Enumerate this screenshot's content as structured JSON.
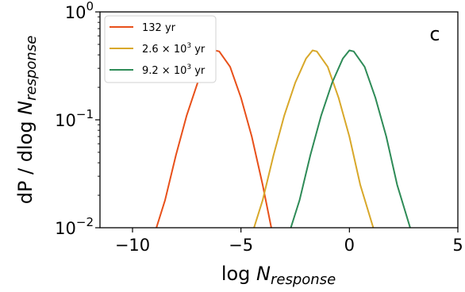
{
  "chart_data": {
    "type": "line",
    "title": "",
    "panel_label": "c",
    "xlabel_main": "log ",
    "xlabel_sym": "N",
    "xlabel_sub": "response",
    "ylabel_main": "dP / dlog ",
    "ylabel_sym": "N",
    "ylabel_sub": "response",
    "xlim": [
      -11.5,
      5
    ],
    "ylim": [
      0.01,
      1
    ],
    "yscale": "log",
    "grid": false,
    "legend_position": "top-left",
    "x_ticks": [
      {
        "value": -10,
        "label": "−10"
      },
      {
        "value": -5,
        "label": "−5"
      },
      {
        "value": 0,
        "label": "0"
      },
      {
        "value": 5,
        "label": "5"
      }
    ],
    "y_ticks": [
      {
        "value": 0.01,
        "base": "10",
        "exp": "−2"
      },
      {
        "value": 0.1,
        "base": "10",
        "exp": "−1"
      },
      {
        "value": 1,
        "base": "10",
        "exp": "0"
      }
    ],
    "series": [
      {
        "name": "132 yr",
        "color": "#e8501a",
        "x": [
          -8.9,
          -8.5,
          -8.0,
          -7.5,
          -7.0,
          -6.5,
          -6.2,
          -6.0,
          -5.5,
          -5.0,
          -4.5,
          -4.0,
          -3.6
        ],
        "y": [
          0.01,
          0.018,
          0.047,
          0.11,
          0.22,
          0.37,
          0.44,
          0.43,
          0.31,
          0.16,
          0.07,
          0.025,
          0.01
        ]
      },
      {
        "name_pre": "2.6 × 10",
        "name_sup": "3",
        "name_post": " yr",
        "color": "#d8a82a",
        "x": [
          -4.4,
          -4.0,
          -3.5,
          -3.0,
          -2.5,
          -2.0,
          -1.7,
          -1.5,
          -1.0,
          -0.5,
          0.0,
          0.5,
          1.1
        ],
        "y": [
          0.01,
          0.018,
          0.047,
          0.11,
          0.22,
          0.37,
          0.44,
          0.43,
          0.31,
          0.16,
          0.07,
          0.025,
          0.01
        ]
      },
      {
        "name_pre": "9.2 × 10",
        "name_sup": "3",
        "name_post": " yr",
        "color": "#2e8b57",
        "x": [
          -2.7,
          -2.3,
          -1.8,
          -1.3,
          -0.8,
          -0.3,
          0.0,
          0.2,
          0.7,
          1.2,
          1.7,
          2.2,
          2.8
        ],
        "y": [
          0.01,
          0.018,
          0.047,
          0.11,
          0.22,
          0.37,
          0.44,
          0.43,
          0.31,
          0.16,
          0.07,
          0.025,
          0.01
        ]
      }
    ]
  }
}
